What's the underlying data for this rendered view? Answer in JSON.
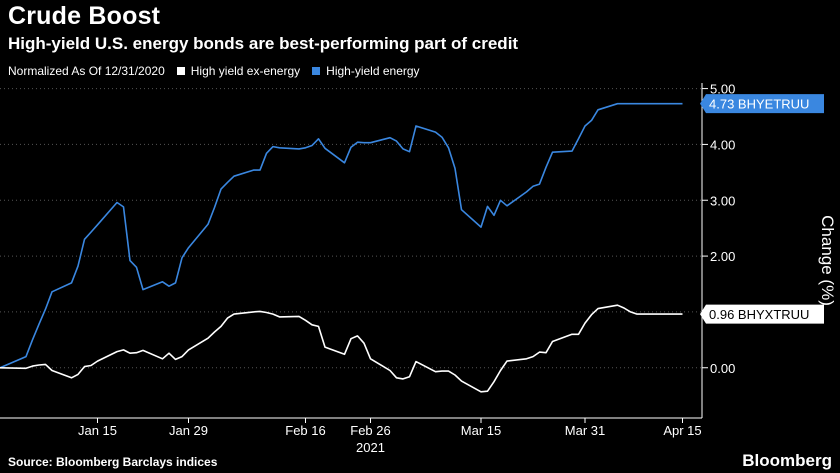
{
  "header": {
    "title": "Crude Boost",
    "subtitle": "High-yield U.S. energy bonds are best-performing part of credit"
  },
  "legend": {
    "note": "Normalized As Of 12/31/2020",
    "items": [
      {
        "label": "High yield ex-energy",
        "color": "#ffffff"
      },
      {
        "label": "High-yield energy",
        "color": "#3a87e0"
      }
    ]
  },
  "footer": {
    "source": "Source: Bloomberg Barclays indices",
    "brand": "Bloomberg"
  },
  "chart_data": {
    "type": "line",
    "xlabel": "2021",
    "ylabel": "Change (%)",
    "ylim": [
      -0.9,
      5.1
    ],
    "yticks": [
      "0.00",
      "1.00",
      "2.00",
      "3.00",
      "4.00",
      "5.00"
    ],
    "x_ticks": [
      {
        "label": "Jan 15",
        "day": 15
      },
      {
        "label": "Jan 29",
        "day": 29
      },
      {
        "label": "Feb 16",
        "day": 47
      },
      {
        "label": "Feb 26",
        "day": 57
      },
      {
        "label": "Mar 15",
        "day": 74
      },
      {
        "label": "Mar 31",
        "day": 90
      },
      {
        "label": "Apr 15",
        "day": 105
      }
    ],
    "x_range_days": [
      0,
      108
    ],
    "grid": "horizontal dotted",
    "end_labels": [
      {
        "series": "High-yield energy",
        "text": "4.73 BHYETRUU",
        "value": 4.73
      },
      {
        "series": "High yield ex-energy",
        "text": "0.96 BHYXTRUU",
        "value": 0.96
      }
    ],
    "series": [
      {
        "name": "High-yield energy",
        "color": "#3a87e0",
        "x": [
          0,
          4,
          5,
          6,
          7,
          8,
          11,
          12,
          13,
          14,
          15,
          18,
          19,
          20,
          21,
          22,
          25,
          26,
          27,
          28,
          29,
          32,
          33,
          34,
          35,
          36,
          39,
          40,
          41,
          42,
          43,
          46,
          47,
          48,
          49,
          50,
          53,
          54,
          55,
          56,
          57,
          60,
          61,
          62,
          63,
          64,
          67,
          68,
          69,
          70,
          71,
          74,
          75,
          76,
          77,
          78,
          81,
          82,
          83,
          84,
          85,
          88,
          89,
          90,
          91,
          92,
          95,
          96,
          97,
          98,
          99,
          102,
          103,
          104,
          105
        ],
        "values": [
          0.0,
          0.2,
          0.5,
          0.78,
          1.05,
          1.36,
          1.52,
          1.82,
          2.3,
          2.43,
          2.56,
          2.96,
          2.88,
          1.92,
          1.8,
          1.4,
          1.54,
          1.46,
          1.52,
          1.97,
          2.15,
          2.57,
          2.87,
          3.2,
          3.32,
          3.43,
          3.54,
          3.54,
          3.84,
          3.96,
          3.94,
          3.92,
          3.94,
          3.98,
          4.1,
          3.93,
          3.67,
          3.95,
          4.04,
          4.03,
          4.03,
          4.12,
          4.06,
          3.92,
          3.87,
          4.33,
          4.22,
          4.13,
          3.94,
          3.57,
          2.83,
          2.52,
          2.89,
          2.73,
          3.0,
          2.9,
          3.15,
          3.25,
          3.29,
          3.59,
          3.86,
          3.88,
          4.1,
          4.33,
          4.43,
          4.62,
          4.73,
          4.73,
          4.73,
          4.73,
          4.73,
          4.73,
          4.73,
          4.73,
          4.73
        ]
      },
      {
        "name": "High yield ex-energy",
        "color": "#ffffff",
        "x": [
          0,
          4,
          5,
          6,
          7,
          8,
          11,
          12,
          13,
          14,
          15,
          18,
          19,
          20,
          21,
          22,
          25,
          26,
          27,
          28,
          29,
          32,
          33,
          34,
          35,
          36,
          39,
          40,
          41,
          42,
          43,
          46,
          47,
          48,
          49,
          50,
          53,
          54,
          55,
          56,
          57,
          60,
          61,
          62,
          63,
          64,
          67,
          68,
          69,
          70,
          71,
          74,
          75,
          76,
          77,
          78,
          81,
          82,
          83,
          84,
          85,
          88,
          89,
          90,
          91,
          92,
          95,
          96,
          97,
          98,
          99,
          102,
          103,
          104,
          105
        ],
        "values": [
          0.0,
          -0.01,
          0.03,
          0.05,
          0.06,
          -0.05,
          -0.18,
          -0.12,
          0.02,
          0.04,
          0.12,
          0.29,
          0.32,
          0.26,
          0.27,
          0.31,
          0.16,
          0.26,
          0.15,
          0.2,
          0.32,
          0.53,
          0.64,
          0.74,
          0.89,
          0.96,
          1.0,
          1.01,
          0.99,
          0.96,
          0.91,
          0.92,
          0.85,
          0.77,
          0.74,
          0.37,
          0.24,
          0.52,
          0.57,
          0.44,
          0.16,
          -0.05,
          -0.18,
          -0.2,
          -0.16,
          0.11,
          -0.07,
          -0.06,
          -0.06,
          -0.13,
          -0.24,
          -0.43,
          -0.42,
          -0.25,
          -0.05,
          0.12,
          0.16,
          0.2,
          0.28,
          0.27,
          0.47,
          0.6,
          0.6,
          0.8,
          0.95,
          1.06,
          1.12,
          1.07,
          1.0,
          0.96,
          0.96,
          0.96,
          0.96,
          0.96,
          0.96
        ]
      }
    ]
  }
}
